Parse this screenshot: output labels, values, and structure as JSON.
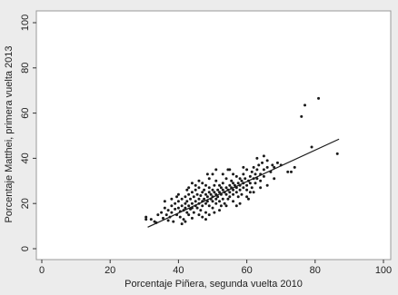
{
  "chart_data": {
    "type": "scatter",
    "xlabel": "Porcentaje Piñera, segunda vuelta 2010",
    "ylabel": "Porcentaje Matthei, primera vuelta 2013",
    "xlim": [
      0,
      100
    ],
    "ylim": [
      0,
      100
    ],
    "x_ticks": [
      "0",
      "20",
      "40",
      "60",
      "80",
      "100"
    ],
    "y_ticks": [
      "0",
      "20",
      "40",
      "60",
      "80",
      "100"
    ],
    "grid": false,
    "legend": "none",
    "colors": {
      "background": "#ececec",
      "plot_background": "#ffffff",
      "points": "#1a1a1a",
      "fit_line": "#1a1a1a"
    },
    "fit_line": {
      "x": [
        31,
        87
      ],
      "y": [
        9.5,
        48.5
      ]
    },
    "points": [
      [
        30.5,
        14
      ],
      [
        30.5,
        13
      ],
      [
        33,
        12
      ],
      [
        33.5,
        11.5
      ],
      [
        35,
        16
      ],
      [
        35.5,
        13.5
      ],
      [
        36,
        18
      ],
      [
        36.5,
        15
      ],
      [
        37,
        17
      ],
      [
        37.5,
        14
      ],
      [
        38,
        19
      ],
      [
        38,
        16
      ],
      [
        38.5,
        12
      ],
      [
        39,
        17.5
      ],
      [
        39,
        20
      ],
      [
        39.5,
        15
      ],
      [
        40,
        18
      ],
      [
        40,
        21
      ],
      [
        40.5,
        16.5
      ],
      [
        40.5,
        14
      ],
      [
        41,
        19
      ],
      [
        41,
        22
      ],
      [
        41.5,
        17
      ],
      [
        41.5,
        13
      ],
      [
        42,
        20
      ],
      [
        42,
        18
      ],
      [
        42,
        23
      ],
      [
        42.5,
        16
      ],
      [
        42.5,
        21
      ],
      [
        43,
        19
      ],
      [
        43,
        24
      ],
      [
        43,
        15
      ],
      [
        43.5,
        22
      ],
      [
        43.5,
        17.5
      ],
      [
        44,
        20
      ],
      [
        44,
        25
      ],
      [
        44,
        18
      ],
      [
        44.5,
        23
      ],
      [
        44.5,
        16
      ],
      [
        45,
        21
      ],
      [
        45,
        19
      ],
      [
        45,
        26
      ],
      [
        45.5,
        24
      ],
      [
        45.5,
        18
      ],
      [
        46,
        22
      ],
      [
        46,
        20
      ],
      [
        46,
        27
      ],
      [
        46.5,
        23.5
      ],
      [
        46.5,
        17
      ],
      [
        47,
        21
      ],
      [
        47,
        25
      ],
      [
        47,
        19
      ],
      [
        47,
        29
      ],
      [
        47.5,
        22
      ],
      [
        47.5,
        26
      ],
      [
        48,
        20
      ],
      [
        48,
        24
      ],
      [
        48,
        28
      ],
      [
        48,
        16
      ],
      [
        48.5,
        23
      ],
      [
        48.5,
        21
      ],
      [
        49,
        25
      ],
      [
        49,
        19
      ],
      [
        49,
        27
      ],
      [
        49,
        31
      ],
      [
        49.5,
        22
      ],
      [
        49.5,
        24
      ],
      [
        50,
        21
      ],
      [
        50,
        26
      ],
      [
        50,
        23
      ],
      [
        50,
        18
      ],
      [
        50.5,
        25
      ],
      [
        50.5,
        28
      ],
      [
        51,
        22
      ],
      [
        51,
        24
      ],
      [
        51,
        20
      ],
      [
        51,
        30
      ],
      [
        51.5,
        26
      ],
      [
        51.5,
        23
      ],
      [
        52,
        25
      ],
      [
        52,
        21
      ],
      [
        52,
        28
      ],
      [
        52.5,
        24
      ],
      [
        52.5,
        27
      ],
      [
        53,
        22
      ],
      [
        53,
        26
      ],
      [
        53,
        29
      ],
      [
        53.5,
        25
      ],
      [
        53.5,
        20
      ],
      [
        54,
        27
      ],
      [
        54,
        24
      ],
      [
        54,
        31
      ],
      [
        54.5,
        26
      ],
      [
        54.5,
        22
      ],
      [
        55,
        28
      ],
      [
        55,
        25
      ],
      [
        55,
        23
      ],
      [
        55.5,
        27
      ],
      [
        55.5,
        30
      ],
      [
        56,
        26
      ],
      [
        56,
        24
      ],
      [
        56,
        29
      ],
      [
        56,
        21
      ],
      [
        56.5,
        28
      ],
      [
        57,
        27
      ],
      [
        57,
        25
      ],
      [
        57,
        32
      ],
      [
        57.5,
        29
      ],
      [
        57.5,
        23
      ],
      [
        58,
        28
      ],
      [
        58,
        26
      ],
      [
        58,
        31
      ],
      [
        58.5,
        30
      ],
      [
        58.5,
        24
      ],
      [
        59,
        29
      ],
      [
        59,
        27
      ],
      [
        59,
        33
      ],
      [
        59.5,
        31
      ],
      [
        60,
        28
      ],
      [
        60,
        26
      ],
      [
        60,
        35
      ],
      [
        60.5,
        30
      ],
      [
        60.5,
        22
      ],
      [
        61,
        32
      ],
      [
        61,
        29
      ],
      [
        61.5,
        34
      ],
      [
        61.5,
        27
      ],
      [
        62,
        31
      ],
      [
        62,
        36
      ],
      [
        62.5,
        33
      ],
      [
        62.5,
        29
      ],
      [
        63,
        35
      ],
      [
        63,
        31
      ],
      [
        63.5,
        37
      ],
      [
        64,
        33
      ],
      [
        64,
        30
      ],
      [
        64.5,
        38
      ],
      [
        65,
        35
      ],
      [
        65,
        32
      ],
      [
        66,
        36
      ],
      [
        66,
        39
      ],
      [
        67,
        34
      ],
      [
        67.5,
        37
      ],
      [
        68,
        36
      ],
      [
        69,
        38
      ],
      [
        70,
        37
      ],
      [
        72,
        34
      ],
      [
        73,
        34
      ],
      [
        74,
        36
      ],
      [
        76,
        58.5
      ],
      [
        77,
        63.5
      ],
      [
        79,
        45
      ],
      [
        81,
        66.5
      ],
      [
        86.5,
        42
      ],
      [
        36,
        21
      ],
      [
        37,
        12.5
      ],
      [
        39.5,
        23
      ],
      [
        41,
        11
      ],
      [
        42.5,
        26
      ],
      [
        44,
        13.5
      ],
      [
        46,
        30
      ],
      [
        48,
        13
      ],
      [
        50,
        33
      ],
      [
        52,
        17
      ],
      [
        54,
        19
      ],
      [
        56,
        33
      ],
      [
        58,
        20
      ],
      [
        60,
        23
      ],
      [
        62,
        25
      ],
      [
        64,
        27
      ],
      [
        66,
        28
      ],
      [
        68,
        31
      ],
      [
        46,
        15
      ],
      [
        45,
        28
      ],
      [
        43,
        27
      ],
      [
        55,
        35
      ],
      [
        57,
        19
      ],
      [
        59,
        36
      ],
      [
        61,
        25
      ],
      [
        63,
        40
      ],
      [
        65,
        41
      ],
      [
        40,
        24
      ],
      [
        38,
        22
      ],
      [
        34,
        15
      ],
      [
        32,
        13
      ],
      [
        51,
        35
      ],
      [
        53,
        33
      ],
      [
        49,
        15
      ],
      [
        47,
        14
      ],
      [
        44,
        29
      ],
      [
        42,
        12
      ],
      [
        48.5,
        33
      ],
      [
        50.5,
        16
      ],
      [
        52.5,
        19
      ],
      [
        54.5,
        35
      ]
    ]
  }
}
